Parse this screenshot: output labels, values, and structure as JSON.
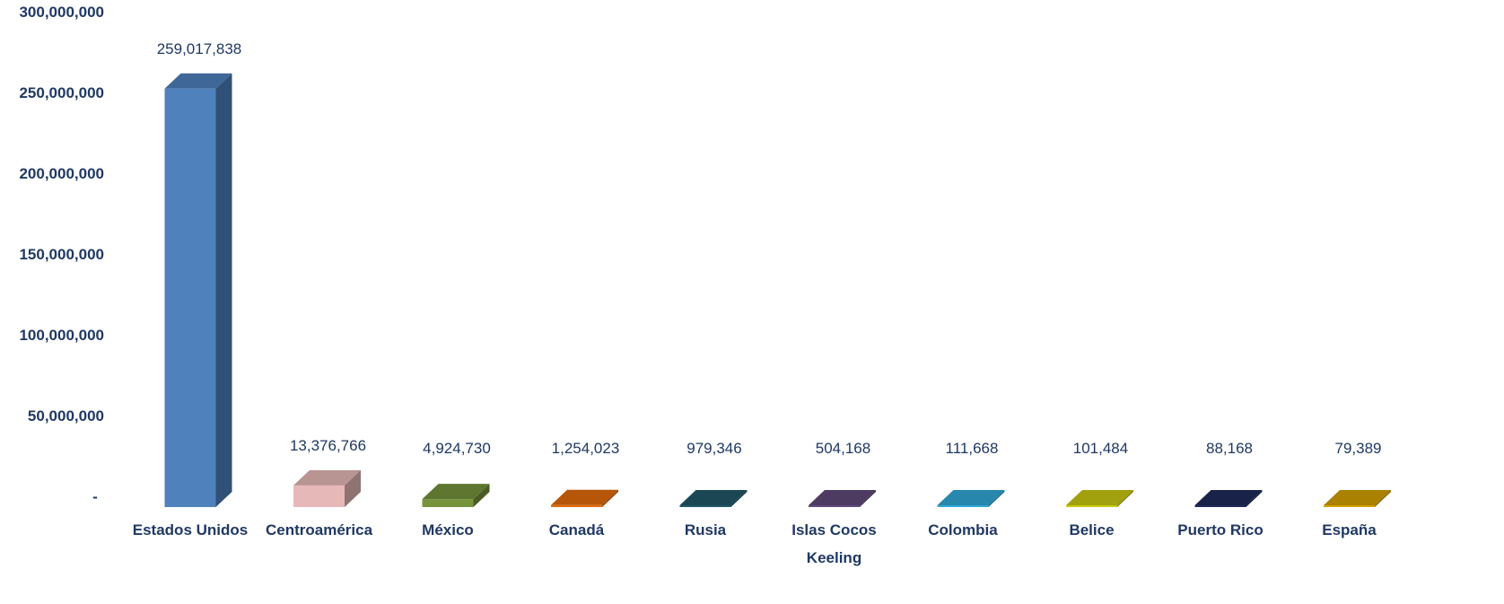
{
  "chart_data": {
    "type": "bar",
    "title": "",
    "xlabel": "",
    "ylabel": "",
    "ylim": [
      0,
      300000000
    ],
    "grid": false,
    "legend": "none",
    "style": "3d-column",
    "y_ticks": [
      "-",
      "50,000,000",
      "100,000,000",
      "150,000,000",
      "200,000,000",
      "250,000,000",
      "300,000,000"
    ],
    "categories": [
      [
        "Estados Unidos"
      ],
      [
        "Centroamérica"
      ],
      [
        "México"
      ],
      [
        "Canadá"
      ],
      [
        "Rusia"
      ],
      [
        "Islas Cocos",
        "Keeling"
      ],
      [
        "Colombia"
      ],
      [
        "Belice"
      ],
      [
        "Puerto Rico"
      ],
      [
        "España"
      ]
    ],
    "values": [
      259017838,
      13376766,
      4924730,
      1254023,
      979346,
      504168,
      111668,
      101484,
      88168,
      79389
    ],
    "data_labels": [
      "259,017,838",
      "13,376,766",
      "4,924,730",
      "1,254,023",
      "979,346",
      "504,168",
      "111,668",
      "101,484",
      "88,168",
      "79,389"
    ],
    "colors": [
      "#4f81bd",
      "#e6b9b8",
      "#77933c",
      "#e46c0a",
      "#215968",
      "#604a7b",
      "#31a9d8",
      "#c9c911",
      "#1f2b5a",
      "#d5a100"
    ]
  }
}
